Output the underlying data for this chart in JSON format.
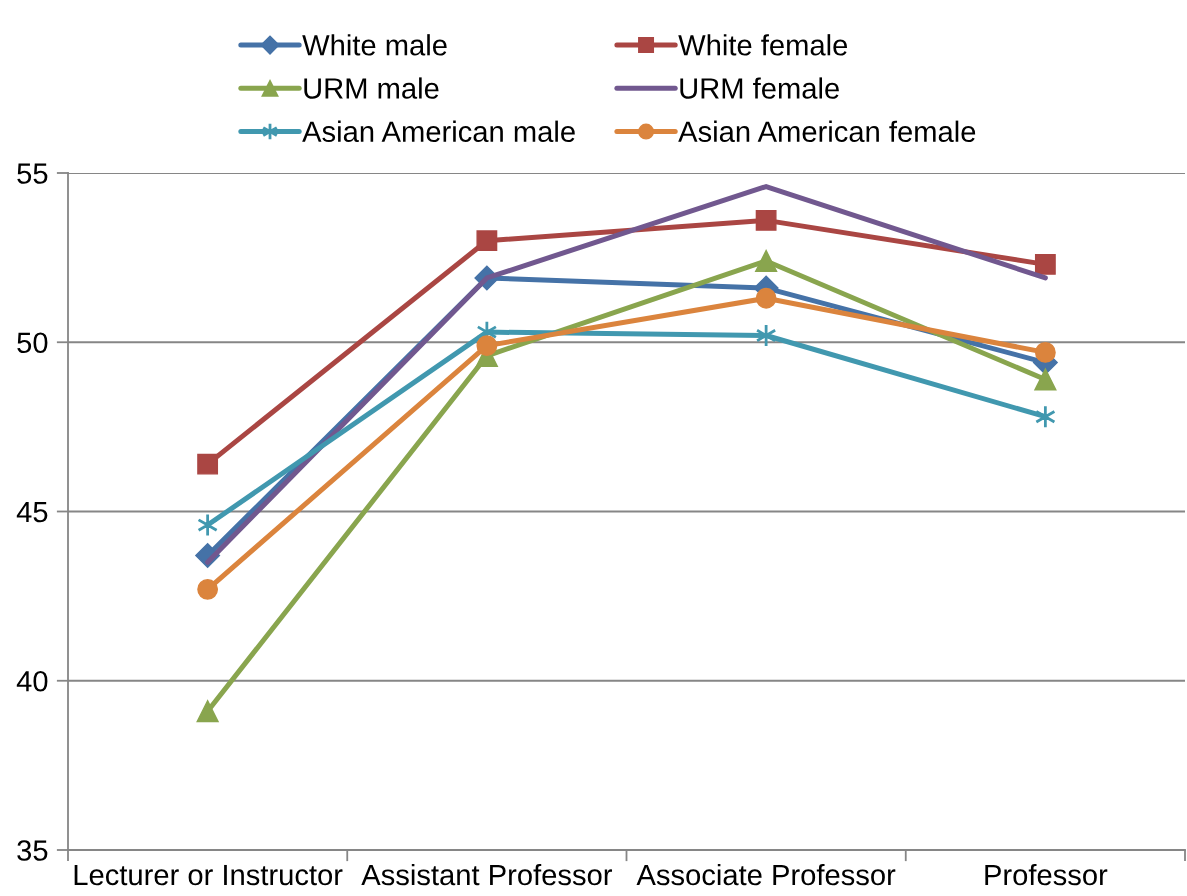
{
  "chart_data": {
    "type": "line",
    "categories": [
      "Lecturer or Instructor",
      "Assistant Professor",
      "Associate Professor",
      "Professor"
    ],
    "series": [
      {
        "name": "White male",
        "color": "#4572a7",
        "marker": "diamond",
        "values": [
          43.7,
          51.9,
          51.6,
          49.4
        ]
      },
      {
        "name": "White female",
        "color": "#aa4643",
        "marker": "square",
        "values": [
          46.4,
          53.0,
          53.6,
          52.3
        ]
      },
      {
        "name": "URM male",
        "color": "#89a54e",
        "marker": "triangle",
        "values": [
          39.1,
          49.6,
          52.4,
          48.9
        ]
      },
      {
        "name": "URM female",
        "color": "#71588f",
        "marker": "none",
        "values": [
          43.5,
          51.9,
          54.6,
          51.9
        ]
      },
      {
        "name": "Asian American male",
        "color": "#4198af",
        "marker": "cross",
        "values": [
          44.6,
          50.3,
          50.2,
          47.8
        ]
      },
      {
        "name": "Asian American female",
        "color": "#db843d",
        "marker": "circle",
        "values": [
          42.7,
          49.9,
          51.3,
          49.7
        ]
      }
    ],
    "ylim": [
      35,
      55
    ],
    "yticks": [
      35,
      40,
      45,
      50,
      55
    ],
    "grid": "y",
    "legend": "top",
    "line_style": "solid"
  }
}
